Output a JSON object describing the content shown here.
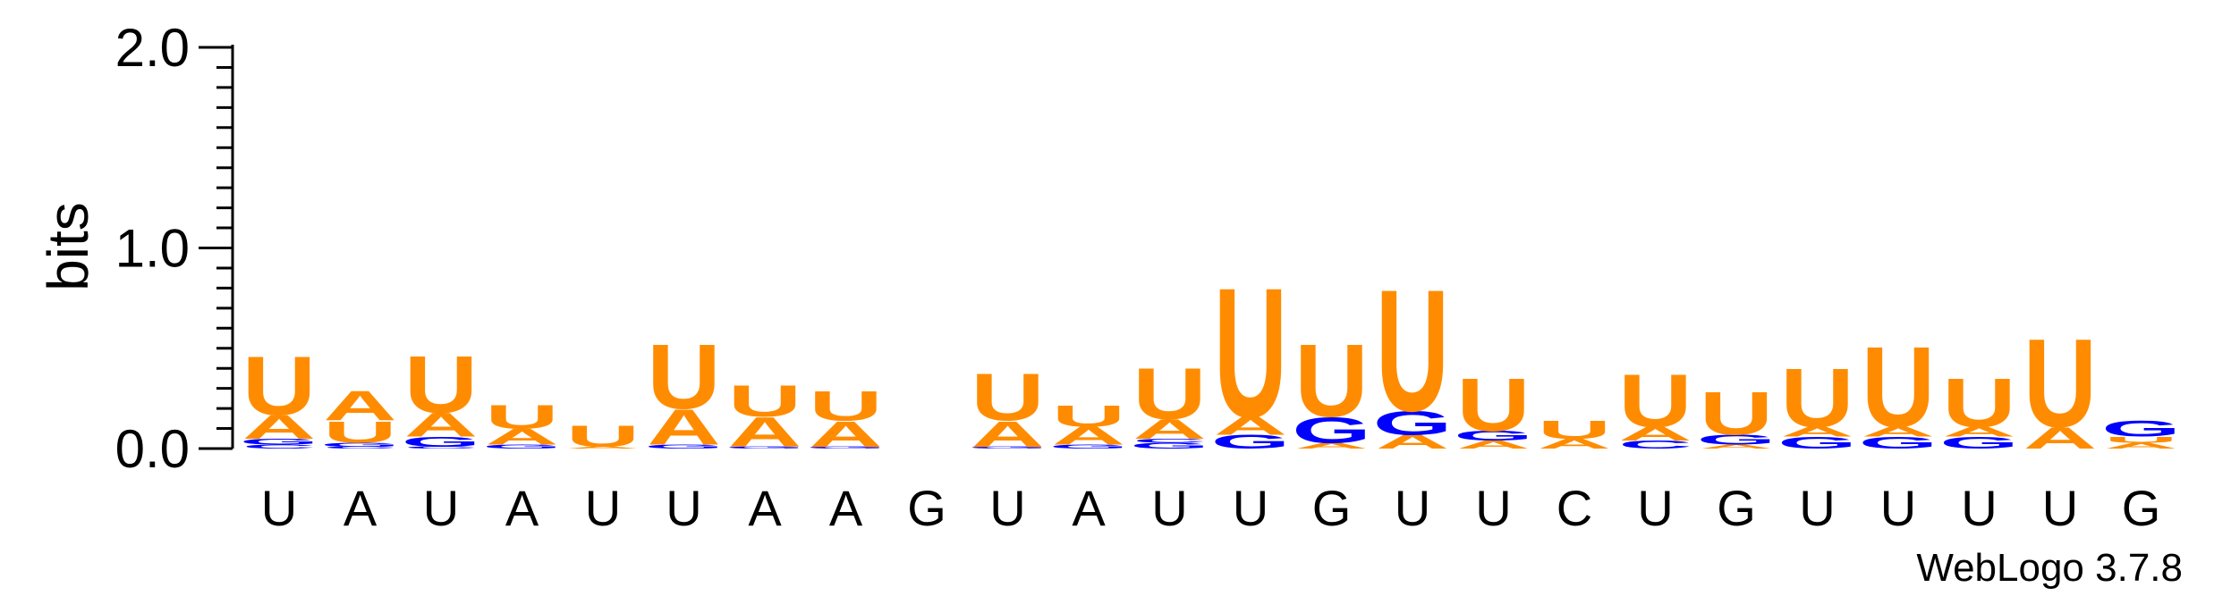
{
  "chart_data": {
    "type": "sequence-logo",
    "ylabel": "bits",
    "ylim": [
      0,
      2.0
    ],
    "yticks": [
      "0.0",
      "1.0",
      "2.0"
    ],
    "y_minor_step": 0.1,
    "credit": "WebLogo 3.7.8",
    "colors": {
      "U": "#ff8c00",
      "A": "#ff8c00",
      "G": "#0000ff",
      "C": "#0000ff"
    },
    "positions": [
      {
        "label": "U",
        "stack": [
          [
            "C",
            0.02
          ],
          [
            "G",
            0.03
          ],
          [
            "A",
            0.12
          ],
          [
            "U",
            0.3
          ]
        ]
      },
      {
        "label": "A",
        "stack": [
          [
            "C",
            0.01
          ],
          [
            "G",
            0.02
          ],
          [
            "U",
            0.11
          ],
          [
            "A",
            0.15
          ]
        ]
      },
      {
        "label": "U",
        "stack": [
          [
            "C",
            0.01
          ],
          [
            "G",
            0.05
          ],
          [
            "A",
            0.12
          ],
          [
            "U",
            0.29
          ]
        ]
      },
      {
        "label": "A",
        "stack": [
          [
            "G",
            0.02
          ],
          [
            "A",
            0.08
          ],
          [
            "U",
            0.12
          ]
        ]
      },
      {
        "label": "U",
        "stack": [
          [
            "A",
            0.01
          ],
          [
            "U",
            0.11
          ]
        ]
      },
      {
        "label": "U",
        "stack": [
          [
            "G",
            0.02
          ],
          [
            "A",
            0.18
          ],
          [
            "U",
            0.33
          ]
        ]
      },
      {
        "label": "A",
        "stack": [
          [
            "G",
            0.01
          ],
          [
            "A",
            0.15
          ],
          [
            "U",
            0.16
          ]
        ]
      },
      {
        "label": "A",
        "stack": [
          [
            "G",
            0.01
          ],
          [
            "A",
            0.13
          ],
          [
            "U",
            0.15
          ]
        ]
      },
      {
        "label": "G",
        "stack": []
      },
      {
        "label": "U",
        "stack": [
          [
            "G",
            0.01
          ],
          [
            "A",
            0.13
          ],
          [
            "U",
            0.24
          ]
        ]
      },
      {
        "label": "A",
        "stack": [
          [
            "G",
            0.02
          ],
          [
            "A",
            0.09
          ],
          [
            "U",
            0.11
          ]
        ]
      },
      {
        "label": "U",
        "stack": [
          [
            "G",
            0.03
          ],
          [
            "C",
            0.02
          ],
          [
            "A",
            0.1
          ],
          [
            "U",
            0.26
          ]
        ]
      },
      {
        "label": "U",
        "stack": [
          [
            "G",
            0.07
          ],
          [
            "A",
            0.09
          ],
          [
            "U",
            0.66
          ]
        ]
      },
      {
        "label": "G",
        "stack": [
          [
            "A",
            0.03
          ],
          [
            "G",
            0.13
          ],
          [
            "U",
            0.37
          ]
        ]
      },
      {
        "label": "U",
        "stack": [
          [
            "A",
            0.07
          ],
          [
            "G",
            0.12
          ],
          [
            "U",
            0.62
          ]
        ]
      },
      {
        "label": "U",
        "stack": [
          [
            "A",
            0.04
          ],
          [
            "G",
            0.05
          ],
          [
            "U",
            0.27
          ]
        ]
      },
      {
        "label": "C",
        "stack": [
          [
            "A",
            0.05
          ],
          [
            "U",
            0.09
          ]
        ]
      },
      {
        "label": "U",
        "stack": [
          [
            "C",
            0.04
          ],
          [
            "A",
            0.07
          ],
          [
            "U",
            0.27
          ]
        ]
      },
      {
        "label": "G",
        "stack": [
          [
            "A",
            0.02
          ],
          [
            "G",
            0.05
          ],
          [
            "U",
            0.22
          ]
        ]
      },
      {
        "label": "U",
        "stack": [
          [
            "G",
            0.06
          ],
          [
            "A",
            0.05
          ],
          [
            "U",
            0.3
          ]
        ]
      },
      {
        "label": "U",
        "stack": [
          [
            "G",
            0.06
          ],
          [
            "A",
            0.05
          ],
          [
            "U",
            0.41
          ]
        ]
      },
      {
        "label": "U",
        "stack": [
          [
            "G",
            0.06
          ],
          [
            "A",
            0.05
          ],
          [
            "U",
            0.25
          ]
        ]
      },
      {
        "label": "U",
        "stack": [
          [
            "A",
            0.11
          ],
          [
            "U",
            0.45
          ]
        ]
      },
      {
        "label": "G",
        "stack": [
          [
            "A",
            0.03
          ],
          [
            "U",
            0.03
          ],
          [
            "G",
            0.08
          ]
        ]
      }
    ]
  }
}
